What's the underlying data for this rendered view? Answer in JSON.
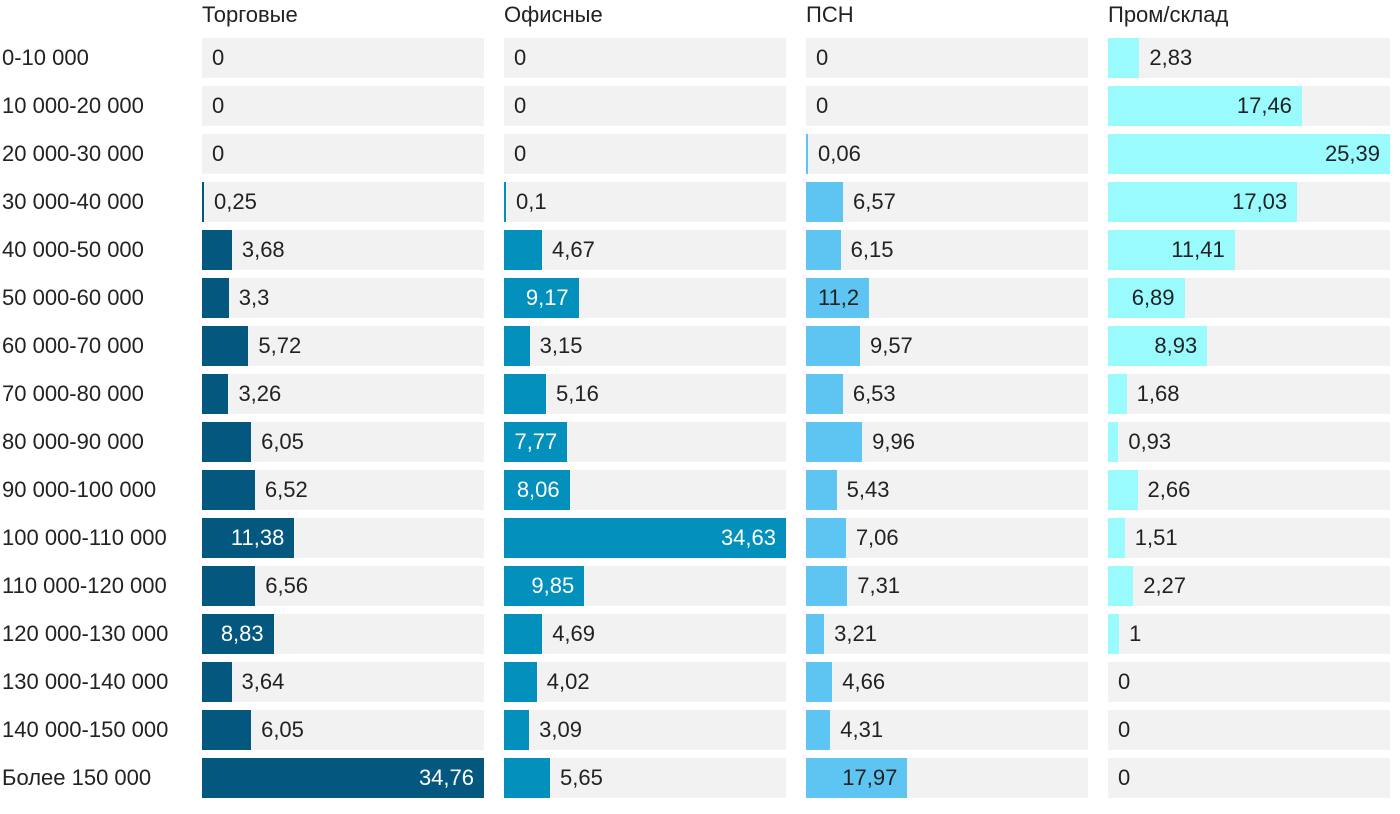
{
  "chart_data": {
    "type": "bar",
    "orientation": "horizontal",
    "layout": "small-multiples",
    "categories": [
      "0-10 000",
      "10 000-20 000",
      "20 000-30 000",
      "30 000-40 000",
      "40 000-50 000",
      "50 000-60 000",
      "60 000-70 000",
      "70 000-80 000",
      "80 000-90 000",
      "90 000-100 000",
      "100 000-110 000",
      "110 000-120 000",
      "120 000-130 000",
      "130 000-140 000",
      "140 000-150 000",
      "Более 150 000"
    ],
    "series": [
      {
        "name": "Торговые",
        "color": "#04587f",
        "xlim": [
          0,
          34.76
        ],
        "values": [
          0,
          0,
          0,
          0.25,
          3.68,
          3.3,
          5.72,
          3.26,
          6.05,
          6.52,
          11.38,
          6.56,
          8.83,
          3.64,
          6.05,
          34.76
        ],
        "labels": [
          "0",
          "0",
          "0",
          "0,25",
          "3,68",
          "3,3",
          "5,72",
          "3,26",
          "6,05",
          "6,52",
          "11,38",
          "6,56",
          "8,83",
          "3,64",
          "6,05",
          "34,76"
        ]
      },
      {
        "name": "Офисные",
        "color": "#0390bc",
        "xlim": [
          0,
          34.63
        ],
        "values": [
          0,
          0,
          0,
          0.1,
          4.67,
          9.17,
          3.15,
          5.16,
          7.77,
          8.06,
          34.63,
          9.85,
          4.69,
          4.02,
          3.09,
          5.65
        ],
        "labels": [
          "0",
          "0",
          "0",
          "0,1",
          "4,67",
          "9,17",
          "3,15",
          "5,16",
          "7,77",
          "8,06",
          "34,63",
          "9,85",
          "4,69",
          "4,02",
          "3,09",
          "5,65"
        ]
      },
      {
        "name": "ПСН",
        "color": "#5ec5f2",
        "xlim": [
          0,
          50
        ],
        "values": [
          0,
          0,
          0.06,
          6.57,
          6.15,
          11.2,
          9.57,
          6.53,
          9.96,
          5.43,
          7.06,
          7.31,
          3.21,
          4.66,
          4.31,
          17.97
        ],
        "labels": [
          "0",
          "0",
          "0,06",
          "6,57",
          "6,15",
          "11,2",
          "9,57",
          "6,53",
          "9,96",
          "5,43",
          "7,06",
          "7,31",
          "3,21",
          "4,66",
          "4,31",
          "17,97"
        ]
      },
      {
        "name": "Пром/склад",
        "color": "#99fbfe",
        "xlim": [
          0,
          25.39
        ],
        "values": [
          2.83,
          17.46,
          25.39,
          17.03,
          11.41,
          6.89,
          8.93,
          1.68,
          0.93,
          2.66,
          1.51,
          2.27,
          1,
          0,
          0,
          0
        ],
        "labels": [
          "2,83",
          "17,46",
          "25,39",
          "17,03",
          "11,41",
          "6,89",
          "8,93",
          "1,68",
          "0,93",
          "2,66",
          "1,51",
          "2,27",
          "1",
          "0",
          "0",
          "0"
        ]
      }
    ]
  }
}
